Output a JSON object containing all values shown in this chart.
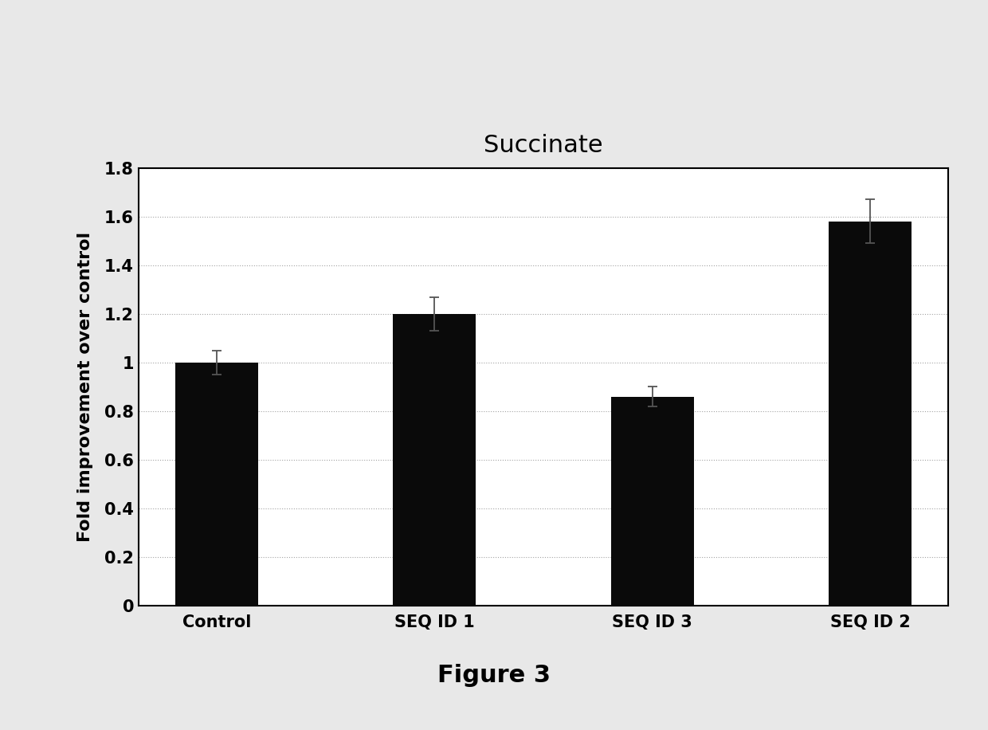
{
  "title": "Succinate",
  "xlabel": "",
  "ylabel": "Fold improvement over control",
  "categories": [
    "Control",
    "SEQ ID 1",
    "SEQ ID 3",
    "SEQ ID 2"
  ],
  "values": [
    1.0,
    1.2,
    0.86,
    1.58
  ],
  "errors": [
    0.05,
    0.07,
    0.04,
    0.09
  ],
  "bar_color": "#0a0a0a",
  "bar_width": 0.38,
  "ylim": [
    0,
    1.8
  ],
  "yticks": [
    0,
    0.2,
    0.4,
    0.6,
    0.8,
    1.0,
    1.2,
    1.4,
    1.6,
    1.8
  ],
  "ytick_labels": [
    "0",
    "0.2",
    "0.4",
    "0.6",
    "0.8",
    "1",
    "1.2",
    "1.4",
    "1.6",
    "1.8"
  ],
  "grid_color": "#999999",
  "page_background": "#e8e8e8",
  "plot_background": "#ffffff",
  "figure_caption": "Figure 3",
  "title_fontsize": 22,
  "ylabel_fontsize": 16,
  "tick_fontsize": 15,
  "caption_fontsize": 22,
  "error_color": "#555555"
}
